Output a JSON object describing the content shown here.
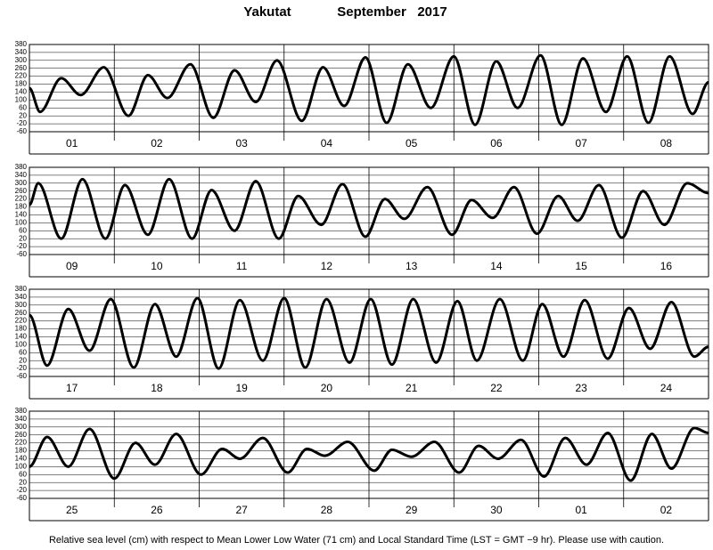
{
  "title": "Yakutat",
  "subtitle": "September   2017",
  "footnote": "Relative sea level (cm) with respect to Mean Lower Low Water (71 cm) and Local Standard Time (LST = GMT −9 hr). Please use with caution.",
  "chart_data": [
    {
      "type": "line",
      "color": "#000000",
      "grid": true,
      "xlim": [
        0,
        192
      ],
      "ylim": [
        -60,
        380
      ],
      "yticks": [
        -60,
        -20,
        20,
        60,
        100,
        140,
        180,
        220,
        260,
        300,
        340,
        380
      ],
      "xticks": [
        {
          "value": 12,
          "label": "01"
        },
        {
          "value": 36,
          "label": "02"
        },
        {
          "value": 60,
          "label": "03"
        },
        {
          "value": 84,
          "label": "04"
        },
        {
          "value": 108,
          "label": "05"
        },
        {
          "value": 132,
          "label": "06"
        },
        {
          "value": 156,
          "label": "07"
        },
        {
          "value": 180,
          "label": "08"
        }
      ],
      "x": [
        0,
        3,
        9,
        14.5,
        21,
        28,
        33.5,
        39,
        45.5,
        52,
        58,
        64,
        70,
        77,
        83,
        89,
        95,
        101,
        107,
        113.5,
        120,
        126,
        132,
        138,
        144.5,
        150.5,
        156.5,
        163,
        169,
        175,
        181,
        187.5,
        192
      ],
      "values": [
        160,
        40,
        210,
        125,
        265,
        20,
        225,
        110,
        280,
        10,
        250,
        90,
        300,
        -5,
        265,
        70,
        315,
        -15,
        280,
        60,
        320,
        -25,
        295,
        60,
        325,
        -25,
        310,
        40,
        320,
        -15,
        320,
        30,
        190
      ]
    },
    {
      "type": "line",
      "color": "#000000",
      "grid": true,
      "xlim": [
        0,
        192
      ],
      "ylim": [
        -60,
        380
      ],
      "yticks": [
        -60,
        -20,
        20,
        60,
        100,
        140,
        180,
        220,
        260,
        300,
        340,
        380
      ],
      "xticks": [
        {
          "value": 12,
          "label": "09"
        },
        {
          "value": 36,
          "label": "10"
        },
        {
          "value": 60,
          "label": "11"
        },
        {
          "value": 84,
          "label": "12"
        },
        {
          "value": 108,
          "label": "13"
        },
        {
          "value": 132,
          "label": "14"
        },
        {
          "value": 156,
          "label": "15"
        },
        {
          "value": 180,
          "label": "16"
        }
      ],
      "x": [
        0,
        2.5,
        9,
        15,
        21.5,
        27,
        33.5,
        39.5,
        46,
        51.5,
        58,
        64,
        70.5,
        76,
        82.5,
        88.5,
        95,
        100.5,
        106,
        112.5,
        119.5,
        125,
        131,
        137,
        143.5,
        149.5,
        155,
        161,
        167.5,
        173.5,
        179.5,
        186,
        192
      ],
      "values": [
        190,
        300,
        20,
        320,
        20,
        290,
        40,
        320,
        20,
        265,
        60,
        310,
        20,
        235,
        90,
        295,
        30,
        220,
        120,
        280,
        40,
        215,
        125,
        280,
        45,
        235,
        110,
        290,
        25,
        260,
        90,
        300,
        250
      ]
    },
    {
      "type": "line",
      "color": "#000000",
      "grid": true,
      "xlim": [
        0,
        192
      ],
      "ylim": [
        -60,
        380
      ],
      "yticks": [
        -60,
        -20,
        20,
        60,
        100,
        140,
        180,
        220,
        260,
        300,
        340,
        380
      ],
      "xticks": [
        {
          "value": 12,
          "label": "17"
        },
        {
          "value": 36,
          "label": "18"
        },
        {
          "value": 60,
          "label": "19"
        },
        {
          "value": 84,
          "label": "20"
        },
        {
          "value": 108,
          "label": "21"
        },
        {
          "value": 132,
          "label": "22"
        },
        {
          "value": 156,
          "label": "23"
        },
        {
          "value": 180,
          "label": "24"
        }
      ],
      "x": [
        0,
        5,
        11,
        17,
        23,
        29.5,
        35.5,
        41.5,
        47.5,
        53.5,
        59.5,
        66,
        72,
        78,
        84,
        90.5,
        96.5,
        102.5,
        108.5,
        115,
        121,
        126.5,
        133,
        139.5,
        145,
        151,
        157,
        163.5,
        169.5,
        175.5,
        181.5,
        188,
        192
      ],
      "values": [
        250,
        -5,
        280,
        70,
        330,
        -15,
        305,
        40,
        335,
        -20,
        325,
        20,
        335,
        -15,
        330,
        10,
        330,
        0,
        330,
        10,
        320,
        20,
        330,
        20,
        305,
        40,
        325,
        30,
        285,
        80,
        315,
        40,
        90
      ]
    },
    {
      "type": "line",
      "color": "#000000",
      "grid": true,
      "xlim": [
        0,
        192
      ],
      "ylim": [
        -60,
        380
      ],
      "yticks": [
        -60,
        -20,
        20,
        60,
        100,
        140,
        180,
        220,
        260,
        300,
        340,
        380
      ],
      "xticks": [
        {
          "value": 12,
          "label": "25"
        },
        {
          "value": 36,
          "label": "26"
        },
        {
          "value": 60,
          "label": "27"
        },
        {
          "value": 84,
          "label": "28"
        },
        {
          "value": 108,
          "label": "29"
        },
        {
          "value": 132,
          "label": "30"
        },
        {
          "value": 156,
          "label": "01"
        },
        {
          "value": 180,
          "label": "02"
        }
      ],
      "x": [
        0,
        5,
        11,
        17,
        24,
        30,
        35.5,
        41.5,
        48.5,
        54.5,
        59.5,
        66,
        73,
        78.5,
        83.5,
        90,
        97.5,
        102.5,
        108,
        114.5,
        121.5,
        127,
        132.5,
        139,
        145.5,
        151.5,
        157.5,
        163.5,
        170,
        176,
        181.5,
        188,
        192
      ],
      "values": [
        100,
        250,
        100,
        290,
        40,
        220,
        110,
        265,
        60,
        190,
        140,
        245,
        70,
        190,
        155,
        225,
        80,
        185,
        150,
        225,
        70,
        205,
        140,
        235,
        50,
        245,
        110,
        270,
        30,
        265,
        90,
        295,
        270
      ]
    }
  ]
}
